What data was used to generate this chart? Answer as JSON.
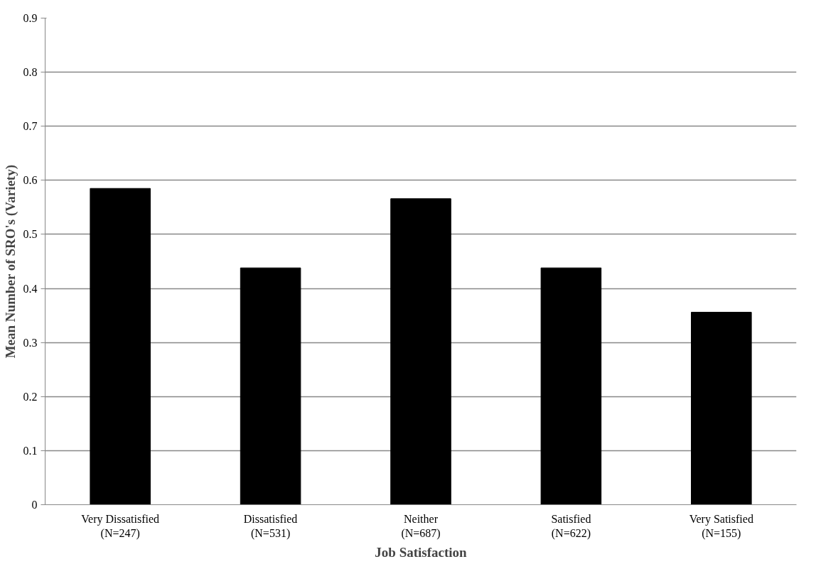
{
  "chart_data": {
    "type": "bar",
    "xlabel": "Job Satisfaction",
    "ylabel": "Mean Number of SRO's (Variety)",
    "categories": [
      "Very Dissatisfied\n(N=247)",
      "Dissatisfied\n(N=531)",
      "Neither\n(N=687)",
      "Satisfied\n(N=622)",
      "Very Satisfied\n(N=155)"
    ],
    "values": [
      0.585,
      0.438,
      0.566,
      0.438,
      0.356
    ],
    "color": "#000000",
    "ylim": [
      0,
      0.9
    ],
    "yticks": [
      0,
      0.1,
      0.2,
      0.3,
      0.4,
      0.5,
      0.6,
      0.7,
      0.8,
      0.9
    ],
    "grid": "y"
  }
}
